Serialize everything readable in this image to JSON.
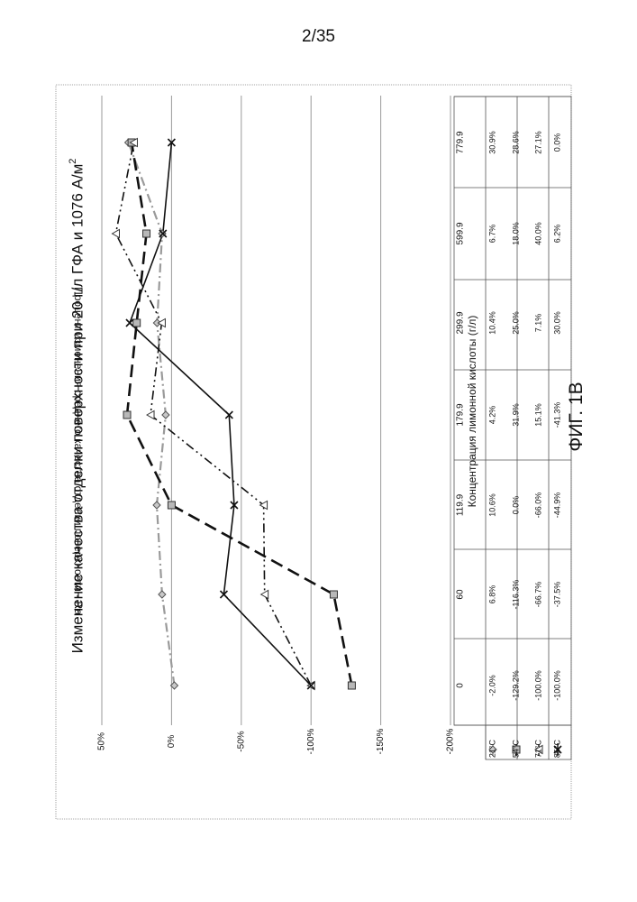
{
  "page": {
    "number": "2/35",
    "caption": "ФИГ. 1В"
  },
  "chart_data": {
    "type": "line",
    "title": "Изменение качества отделки поверхности при 20 г/л ГФА и 1076 А/м",
    "title_sup": "2",
    "xlabel": "Концентрация лимонной кислоты (г/л)",
    "ylabel": "Процент изменения среднего качества отделки поверхности - Ra",
    "categories": [
      "0",
      "60",
      "119.9",
      "179.9",
      "299.9",
      "599.9",
      "779.9"
    ],
    "ylim": [
      -200,
      50
    ],
    "yticks": [
      "50%",
      "0%",
      "-50%",
      "-100%",
      "-150%",
      "-200%"
    ],
    "ytick_values": [
      50,
      0,
      -50,
      -100,
      -150,
      -200
    ],
    "orientation": "rotated 90° counter-clockwise",
    "grid": "horizontal gridlines",
    "legend": "data table below the plot",
    "series": [
      {
        "name": "21°C",
        "color": "#9a9a9a",
        "line": "dash-dot",
        "marker": "diamond",
        "values": [
          -2.0,
          6.8,
          10.6,
          4.2,
          10.4,
          6.7,
          30.9
        ],
        "labels": [
          "-2.0%",
          "6.8%",
          "10.6%",
          "4.2%",
          "10.4%",
          "6.7%",
          "30.9%"
        ]
      },
      {
        "name": "54°C",
        "color": "#111111",
        "line": "long-dash",
        "marker": "square",
        "values": [
          -129.2,
          -116.3,
          0.0,
          31.9,
          25.0,
          18.0,
          28.6
        ],
        "labels": [
          "-129.2%",
          "-116.3%",
          "0.0%",
          "31.9%",
          "25.0%",
          "18.0%",
          "28.6%"
        ]
      },
      {
        "name": "71°C",
        "color": "#111111",
        "line": "dash-dot-dot",
        "marker": "triangle",
        "values": [
          -100.0,
          -66.7,
          -66.0,
          15.1,
          7.1,
          40.0,
          27.1
        ],
        "labels": [
          "-100.0%",
          "-66.7%",
          "-66.0%",
          "15.1%",
          "7.1%",
          "40.0%",
          "27.1%"
        ]
      },
      {
        "name": "85°C",
        "color": "#111111",
        "line": "solid",
        "marker": "x",
        "values": [
          -100.0,
          -37.5,
          -44.9,
          -41.3,
          30.0,
          6.2,
          0.0
        ],
        "labels": [
          "-100.0%",
          "-37.5%",
          "-44.9%",
          "-41.3%",
          "30.0%",
          "6.2%",
          "0.0%"
        ]
      }
    ]
  }
}
